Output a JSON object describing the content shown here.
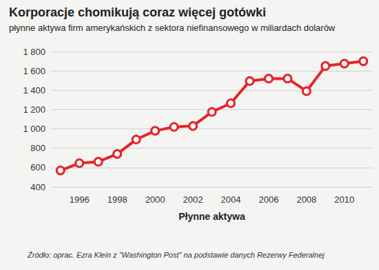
{
  "chart_data": {
    "type": "line",
    "title": "Korporacje chomikują coraz więcej gotówki",
    "subtitle": "płynne aktywa firm amerykańskich z sektora niefinansowego w miliardach dolarów",
    "xlabel": "Płynne aktywa",
    "source": "Źródło: oprac. Ezra Klein z \"Washington Post\" na podstawie danych Rezerwy Federalnej",
    "categories": [
      null,
      "1996",
      null,
      "1998",
      null,
      "2000",
      null,
      "2002",
      null,
      "2004",
      null,
      "2006",
      null,
      "2008",
      null,
      "2010",
      null
    ],
    "values": [
      570,
      645,
      660,
      740,
      890,
      980,
      1020,
      1030,
      1175,
      1265,
      1495,
      1520,
      1520,
      1390,
      1650,
      1675,
      1700
    ],
    "color": "#e4252b",
    "marker": "circle",
    "ylim": [
      400,
      1800
    ],
    "yticks": [
      400,
      600,
      800,
      {
        "value": 1000,
        "label": "1 000"
      },
      {
        "value": 1200,
        "label": "1 200"
      },
      {
        "value": 1400,
        "label": "1 400"
      },
      {
        "value": 1600,
        "label": "1 600"
      },
      {
        "value": 1800,
        "label": "1 800"
      }
    ],
    "grid": true
  }
}
